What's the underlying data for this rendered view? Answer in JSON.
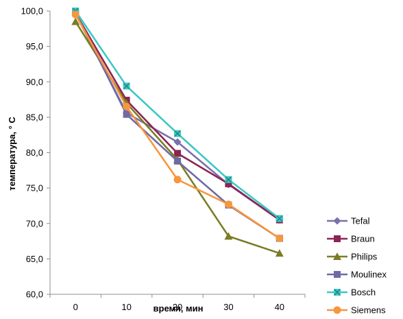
{
  "chart_data": {
    "type": "line",
    "title": "",
    "xlabel": "время, мин",
    "ylabel": "температура, ° С",
    "x": [
      0,
      10,
      20,
      30,
      40
    ],
    "x_tick_labels": [
      "0",
      "10",
      "20",
      "30",
      "40"
    ],
    "ylim": [
      60,
      100
    ],
    "y_ticks": [
      60,
      65,
      70,
      75,
      80,
      85,
      90,
      95,
      100
    ],
    "y_tick_labels": [
      "60,0",
      "65,0",
      "70,0",
      "75,0",
      "80,0",
      "85,0",
      "90,0",
      "95,0",
      "100,0"
    ],
    "grid": false,
    "legend_position": "right",
    "series": [
      {
        "name": "Tefal",
        "color": "#7b6fae",
        "marker": "diamond",
        "values": [
          99.6,
          85.6,
          81.5,
          75.5,
          70.5
        ]
      },
      {
        "name": "Braun",
        "color": "#8b2552",
        "marker": "square",
        "values": [
          99.7,
          87.4,
          79.9,
          75.6,
          70.5
        ]
      },
      {
        "name": "Philips",
        "color": "#7b7d25",
        "marker": "triangle",
        "values": [
          98.5,
          87.0,
          79.0,
          68.2,
          65.8
        ]
      },
      {
        "name": "Moulinex",
        "color": "#6e6aa6",
        "marker": "square",
        "values": [
          99.8,
          85.4,
          78.8,
          72.6,
          67.9
        ]
      },
      {
        "name": "Bosch",
        "color": "#3cc8c4",
        "marker": "x-square",
        "values": [
          100.0,
          89.4,
          82.7,
          76.2,
          70.7
        ]
      },
      {
        "name": "Siemens",
        "color": "#f7963c",
        "marker": "circle",
        "values": [
          99.5,
          86.5,
          76.2,
          72.7,
          67.9
        ]
      }
    ]
  }
}
